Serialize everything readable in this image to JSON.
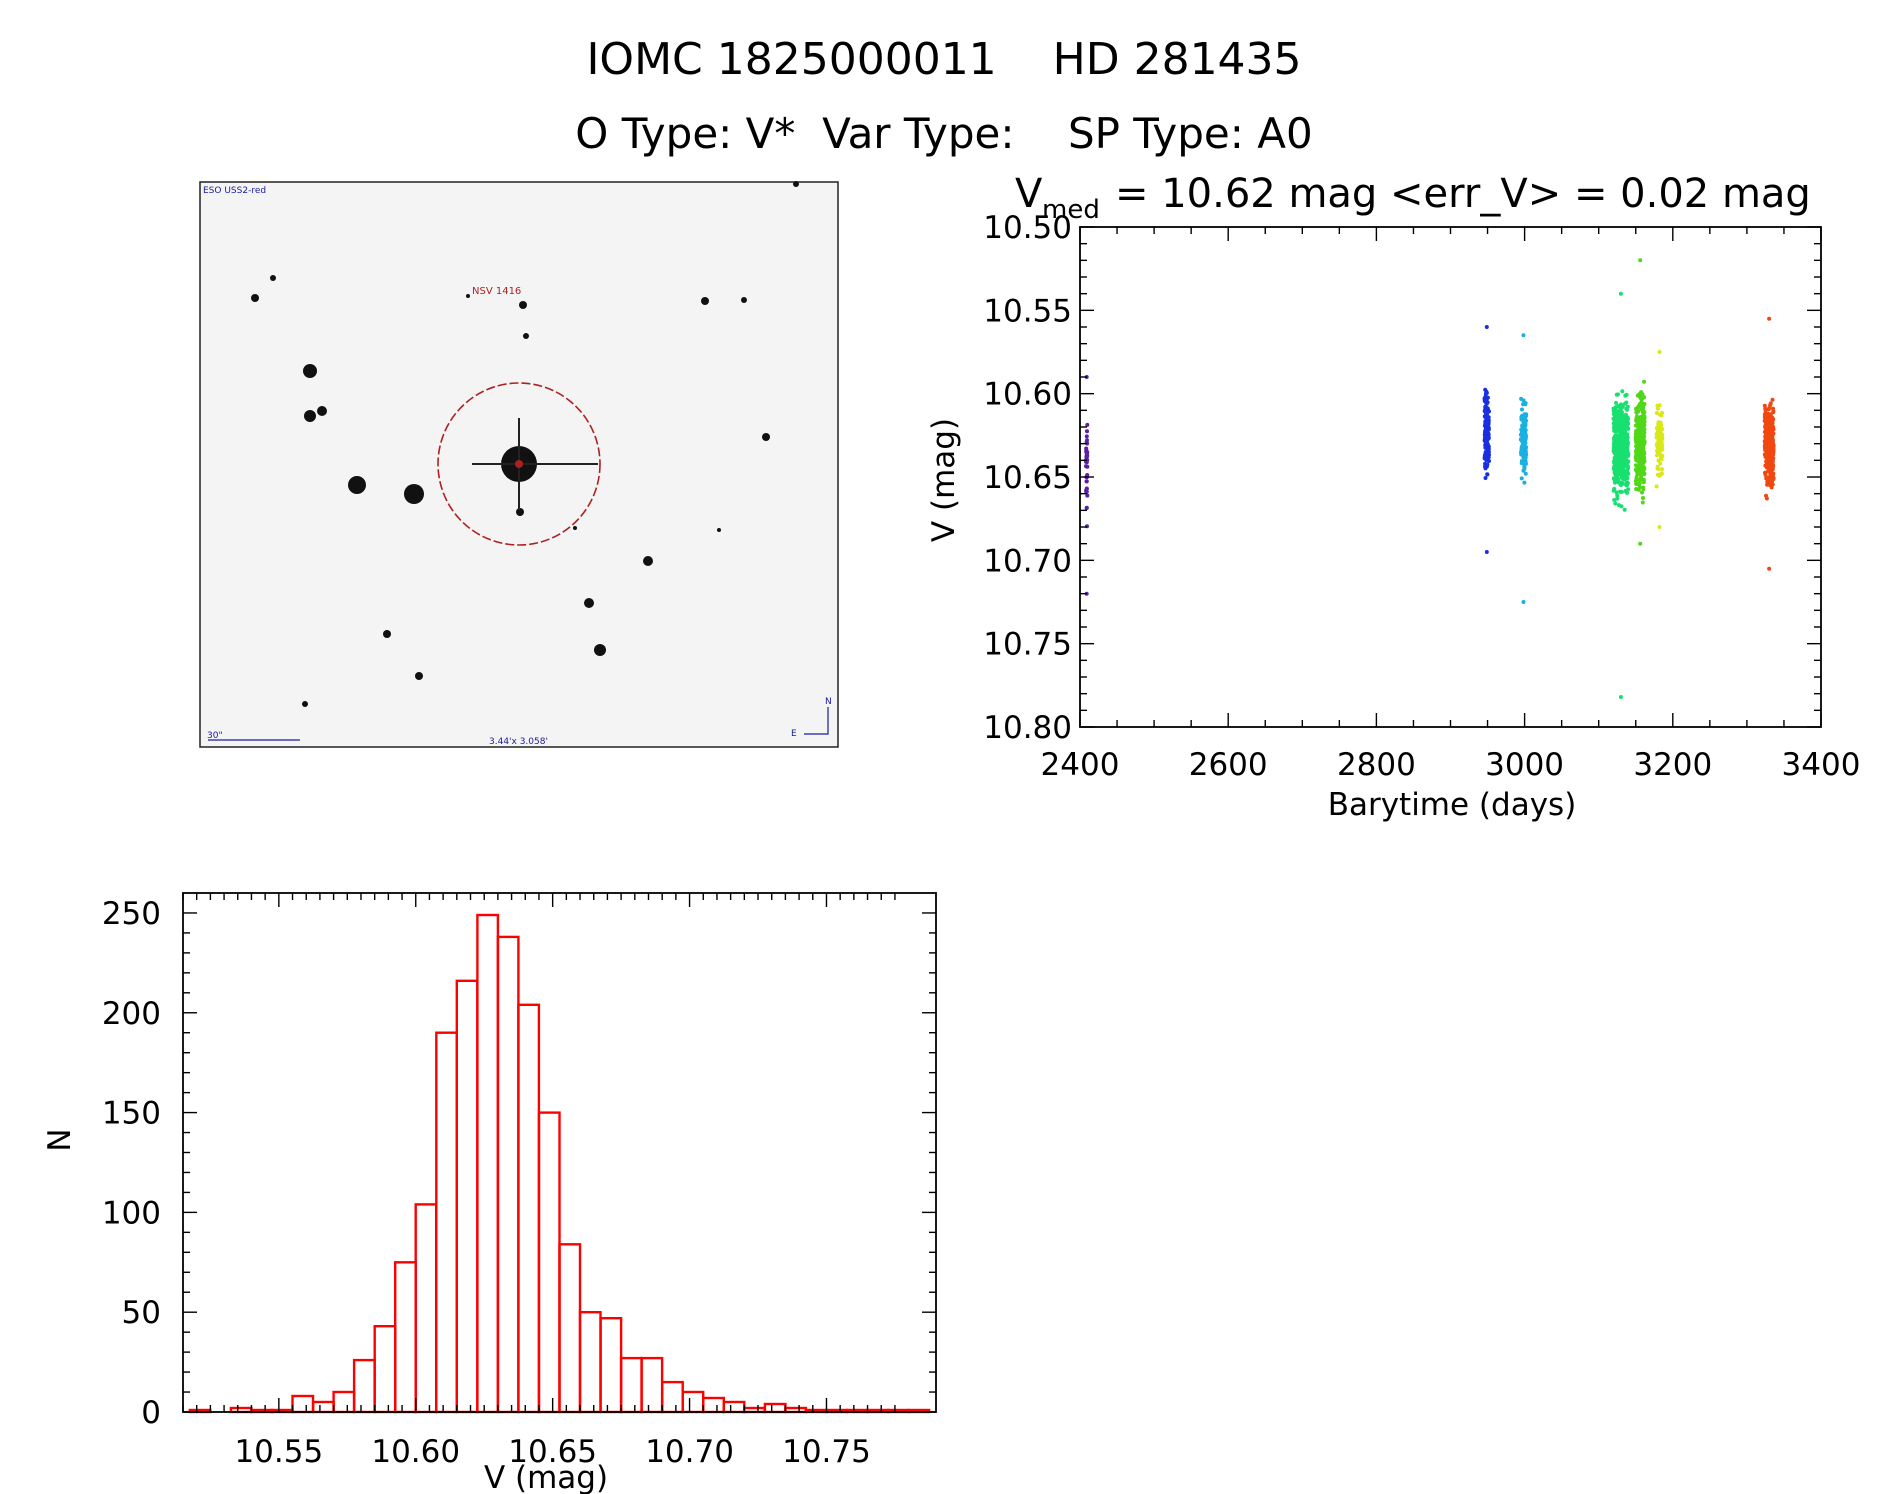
{
  "header": {
    "title_line": "IOMC 1825000011    HD 281435",
    "info_line": "O Type: V*  Var Type:    SP Type: A0"
  },
  "finder": {
    "survey_label": "ESO USS2-red",
    "object_label": "NSV 1416",
    "scale_label": "30\"",
    "fov_label": "3.44'x 3.058'",
    "north_label": "N",
    "east_label": "E"
  },
  "chart_data": [
    {
      "type": "scatter",
      "title_prefix": "V",
      "title_sub": "med",
      "title_rest": "= 10.62 mag <err_V> = 0.02 mag",
      "xlabel": "Barytime (days)",
      "ylabel": "V (mag)",
      "xlim": [
        2400,
        3400
      ],
      "ylim": [
        10.8,
        10.5
      ],
      "y_inverted": true,
      "xticks": [
        2400,
        2600,
        2800,
        3000,
        3200,
        3400
      ],
      "yticks": [
        "10.50",
        "10.55",
        "10.60",
        "10.65",
        "10.70",
        "10.75",
        "10.80"
      ],
      "series": [
        {
          "color": "#5b1fa8",
          "x_range": [
            2408,
            2410
          ],
          "y_center": 10.645,
          "y_spread": 0.022,
          "n": 40,
          "y_extremes": [
            10.59,
            10.72
          ]
        },
        {
          "color": "#1a2fe0",
          "x_range": [
            2946,
            2952
          ],
          "y_center": 10.625,
          "y_spread": 0.014,
          "n": 170,
          "y_extremes": [
            10.56,
            10.695
          ]
        },
        {
          "color": "#1ab0e0",
          "x_range": [
            2995,
            3002
          ],
          "y_center": 10.628,
          "y_spread": 0.014,
          "n": 150,
          "y_extremes": [
            10.565,
            10.725
          ]
        },
        {
          "color": "#18e070",
          "x_range": [
            3120,
            3140
          ],
          "y_center": 10.632,
          "y_spread": 0.018,
          "n": 520,
          "y_extremes": [
            10.54,
            10.782
          ]
        },
        {
          "color": "#50d818",
          "x_range": [
            3150,
            3162
          ],
          "y_center": 10.63,
          "y_spread": 0.017,
          "n": 330,
          "y_extremes": [
            10.52,
            10.69
          ]
        },
        {
          "color": "#d8e818",
          "x_range": [
            3178,
            3186
          ],
          "y_center": 10.63,
          "y_spread": 0.014,
          "n": 90,
          "y_extremes": [
            10.575,
            10.68
          ]
        },
        {
          "color": "#f04810",
          "x_range": [
            3324,
            3336
          ],
          "y_center": 10.632,
          "y_spread": 0.016,
          "n": 330,
          "y_extremes": [
            10.555,
            10.705
          ]
        }
      ]
    },
    {
      "type": "bar",
      "subtype": "histogram",
      "xlabel": "V (mag)",
      "ylabel": "N",
      "xlim": [
        10.515,
        10.79
      ],
      "ylim": [
        0,
        260
      ],
      "xticks": [
        "10.55",
        "10.60",
        "10.65",
        "10.70",
        "10.75"
      ],
      "yticks": [
        "0",
        "50",
        "100",
        "150",
        "200",
        "250"
      ],
      "bin_width": 0.0075,
      "bin_starts": [
        10.5175,
        10.525,
        10.5325,
        10.54,
        10.5475,
        10.555,
        10.5625,
        10.57,
        10.5775,
        10.585,
        10.5925,
        10.6,
        10.6075,
        10.615,
        10.6225,
        10.63,
        10.6375,
        10.645,
        10.6525,
        10.66,
        10.6675,
        10.675,
        10.6825,
        10.69,
        10.6975,
        10.705,
        10.7125,
        10.72,
        10.7275,
        10.735,
        10.7425,
        10.75,
        10.7575,
        10.765,
        10.7725,
        10.78
      ],
      "counts": [
        1,
        0,
        2,
        1,
        1,
        8,
        5,
        10,
        26,
        43,
        75,
        104,
        190,
        216,
        249,
        238,
        204,
        150,
        84,
        50,
        47,
        27,
        27,
        15,
        10,
        7,
        5,
        2,
        4,
        2,
        1,
        1,
        1,
        1,
        1,
        1
      ],
      "color": "#ff0000"
    }
  ]
}
